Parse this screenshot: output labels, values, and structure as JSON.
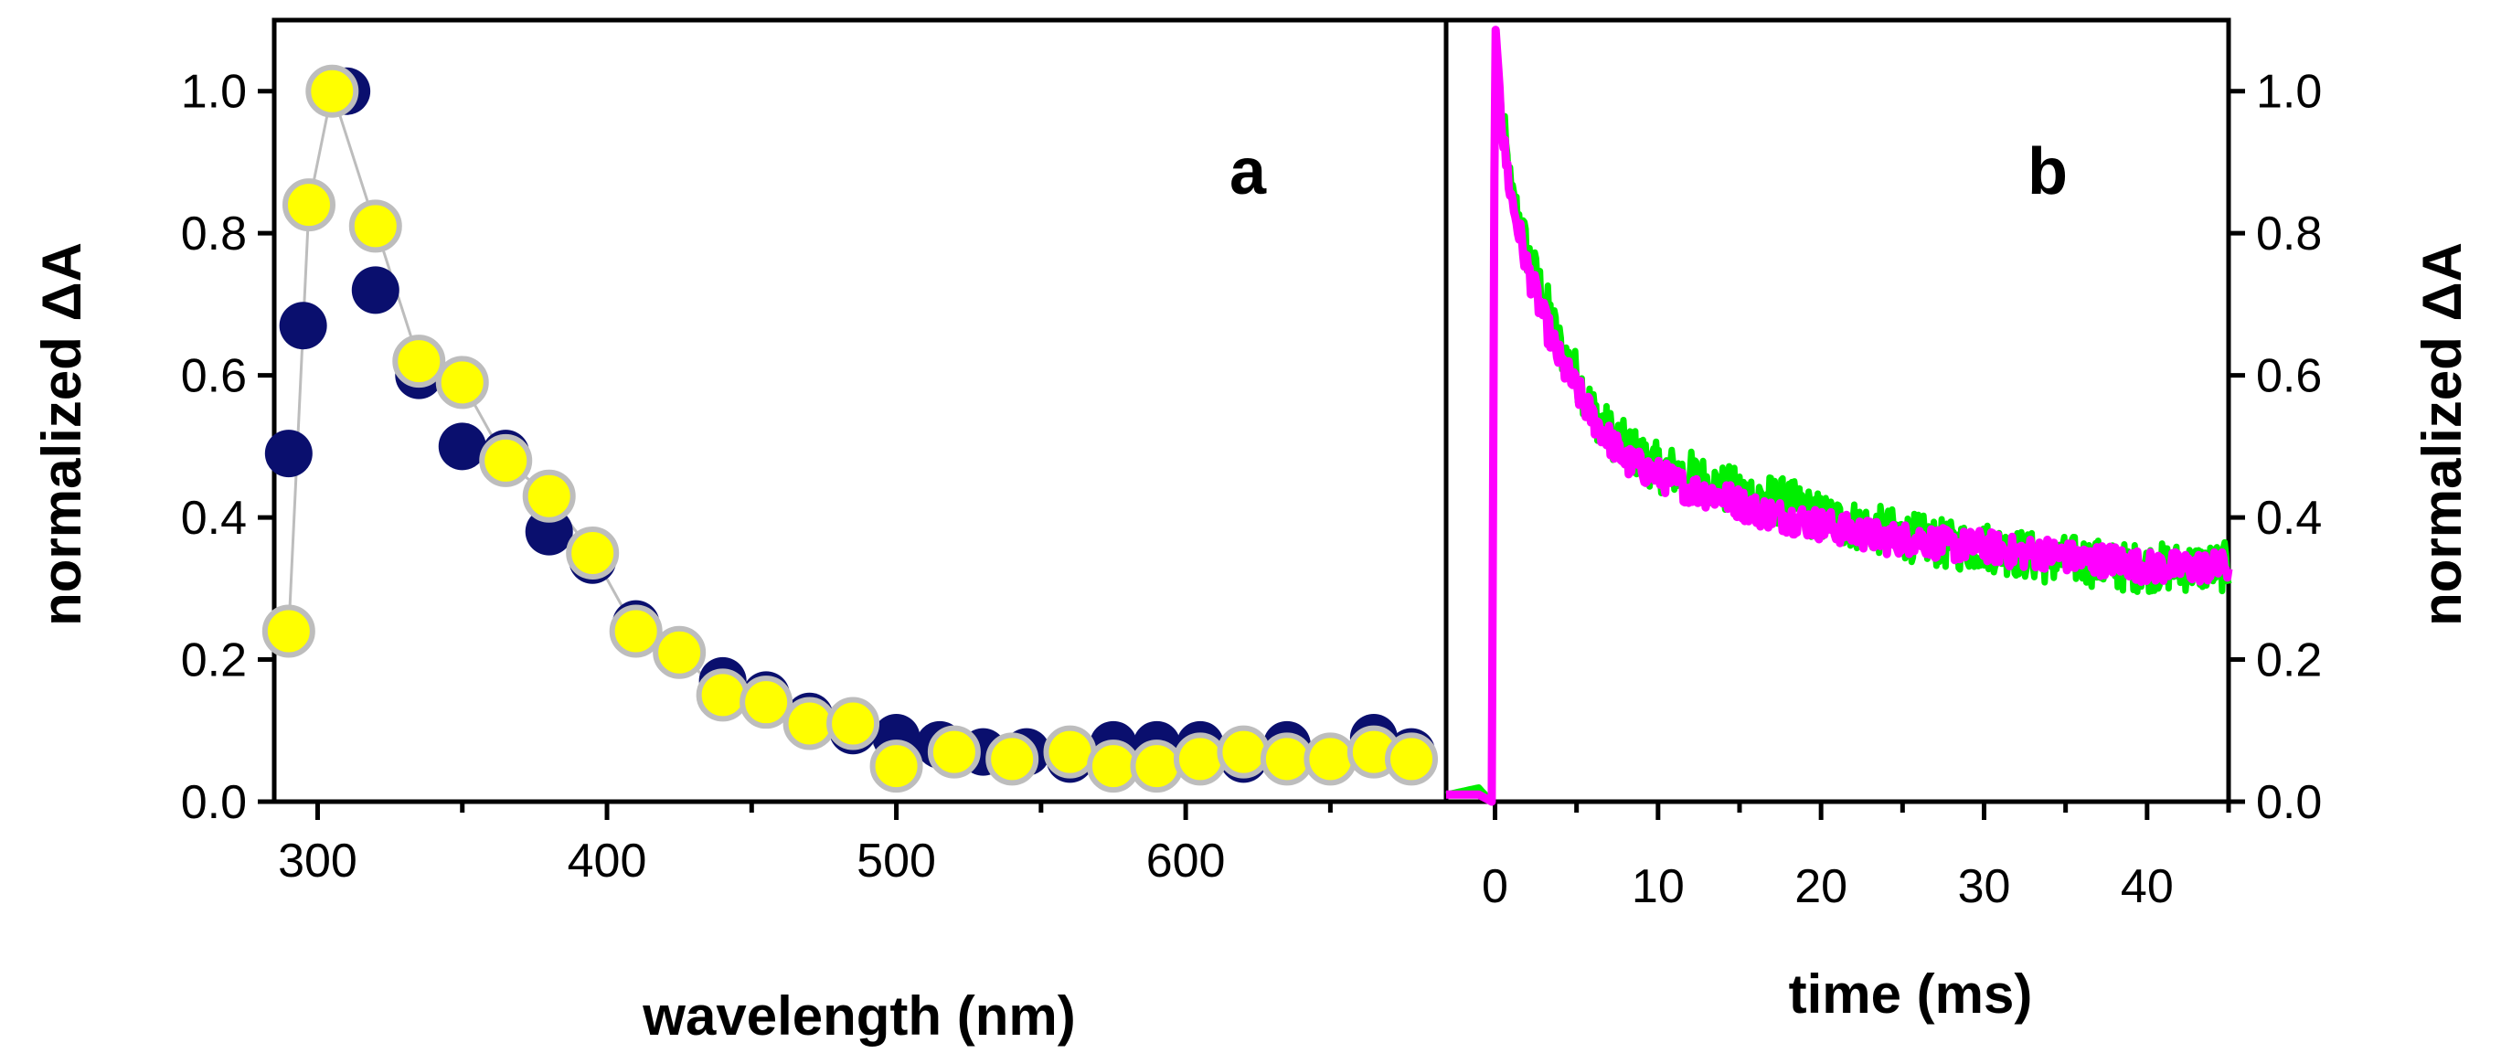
{
  "chart_data": [
    {
      "panel": "a",
      "type": "scatter",
      "xlabel": "wavelength (nm)",
      "ylabel": "normalized ΔA",
      "xlim": [
        285,
        690
      ],
      "ylim": [
        0,
        1.1
      ],
      "xticks": [
        300,
        400,
        500,
        600
      ],
      "yticks": [
        0.0,
        0.2,
        0.4,
        0.6,
        0.8,
        1.0
      ],
      "ytick_labels": [
        "0.0",
        "0.2",
        "0.4",
        "0.6",
        "0.8",
        "1.0"
      ],
      "grid": false,
      "series": [
        {
          "color": "#0a0f6e",
          "points": [
            [
              290,
              0.49
            ],
            [
              295,
              0.67
            ],
            [
              305,
              1.0
            ],
            [
              310,
              1.0
            ],
            [
              320,
              0.72
            ],
            [
              335,
              0.6
            ],
            [
              350,
              0.5
            ],
            [
              365,
              0.49
            ],
            [
              380,
              0.38
            ],
            [
              395,
              0.34
            ],
            [
              410,
              0.25
            ],
            [
              425,
              0.21
            ],
            [
              440,
              0.17
            ],
            [
              455,
              0.15
            ],
            [
              470,
              0.12
            ],
            [
              485,
              0.1
            ],
            [
              500,
              0.09
            ],
            [
              515,
              0.08
            ],
            [
              530,
              0.07
            ],
            [
              545,
              0.07
            ],
            [
              560,
              0.06
            ],
            [
              575,
              0.08
            ],
            [
              590,
              0.08
            ],
            [
              605,
              0.08
            ],
            [
              620,
              0.06
            ],
            [
              635,
              0.08
            ],
            [
              650,
              0.06
            ],
            [
              665,
              0.09
            ],
            [
              678,
              0.07
            ]
          ]
        },
        {
          "color": "#ffff00",
          "edge_color": "#bdbdbd",
          "connected": true,
          "points": [
            [
              290,
              0.24
            ],
            [
              297,
              0.84
            ],
            [
              305,
              1.0
            ],
            [
              320,
              0.81
            ],
            [
              335,
              0.62
            ],
            [
              350,
              0.59
            ],
            [
              365,
              0.48
            ],
            [
              380,
              0.43
            ],
            [
              395,
              0.35
            ],
            [
              410,
              0.24
            ],
            [
              425,
              0.21
            ],
            [
              440,
              0.15
            ],
            [
              455,
              0.14
            ],
            [
              470,
              0.11
            ],
            [
              485,
              0.11
            ],
            [
              500,
              0.05
            ],
            [
              520,
              0.07
            ],
            [
              540,
              0.06
            ],
            [
              560,
              0.07
            ],
            [
              575,
              0.05
            ],
            [
              590,
              0.05
            ],
            [
              605,
              0.06
            ],
            [
              620,
              0.07
            ],
            [
              635,
              0.06
            ],
            [
              650,
              0.06
            ],
            [
              665,
              0.07
            ],
            [
              678,
              0.06
            ]
          ]
        }
      ]
    },
    {
      "panel": "b",
      "type": "line",
      "xlabel": "time (ms)",
      "ylabel": "normalized ΔA",
      "xlim": [
        -3,
        45
      ],
      "ylim": [
        0,
        1.1
      ],
      "xticks": [
        0,
        10,
        20,
        30,
        40
      ],
      "yticks": [
        0.0,
        0.2,
        0.4,
        0.6,
        0.8,
        1.0
      ],
      "ytick_labels": [
        "0.0",
        "0.2",
        "0.4",
        "0.6",
        "0.8",
        "1.0"
      ],
      "grid": false,
      "series": [
        {
          "color": "#00ee00",
          "points": [
            [
              -3,
              0.01
            ],
            [
              -1,
              0.02
            ],
            [
              -0.2,
              0.0
            ],
            [
              0,
              1.05
            ],
            [
              0.5,
              0.95
            ],
            [
              1,
              0.85
            ],
            [
              1.5,
              0.82
            ],
            [
              2,
              0.77
            ],
            [
              3,
              0.71
            ],
            [
              4,
              0.64
            ],
            [
              5,
              0.6
            ],
            [
              6,
              0.55
            ],
            [
              7,
              0.52
            ],
            [
              8,
              0.5
            ],
            [
              10,
              0.47
            ],
            [
              12,
              0.46
            ],
            [
              14,
              0.44
            ],
            [
              16,
              0.43
            ],
            [
              18,
              0.42
            ],
            [
              20,
              0.4
            ],
            [
              22,
              0.39
            ],
            [
              24,
              0.38
            ],
            [
              26,
              0.37
            ],
            [
              28,
              0.36
            ],
            [
              30,
              0.36
            ],
            [
              32,
              0.35
            ],
            [
              34,
              0.34
            ],
            [
              36,
              0.34
            ],
            [
              38,
              0.33
            ],
            [
              40,
              0.33
            ],
            [
              42,
              0.33
            ],
            [
              45,
              0.33
            ]
          ]
        },
        {
          "color": "#ff00ff",
          "points": [
            [
              -3,
              0.01
            ],
            [
              -1,
              0.01
            ],
            [
              -0.2,
              0.0
            ],
            [
              0,
              1.1
            ],
            [
              0.5,
              0.93
            ],
            [
              1,
              0.85
            ],
            [
              1.5,
              0.8
            ],
            [
              2,
              0.75
            ],
            [
              3,
              0.68
            ],
            [
              4,
              0.62
            ],
            [
              5,
              0.58
            ],
            [
              6,
              0.54
            ],
            [
              7,
              0.51
            ],
            [
              8,
              0.48
            ],
            [
              10,
              0.46
            ],
            [
              12,
              0.44
            ],
            [
              14,
              0.43
            ],
            [
              16,
              0.41
            ],
            [
              18,
              0.4
            ],
            [
              20,
              0.39
            ],
            [
              22,
              0.38
            ],
            [
              24,
              0.37
            ],
            [
              26,
              0.37
            ],
            [
              28,
              0.36
            ],
            [
              30,
              0.36
            ],
            [
              32,
              0.35
            ],
            [
              34,
              0.35
            ],
            [
              36,
              0.34
            ],
            [
              38,
              0.34
            ],
            [
              40,
              0.33
            ],
            [
              42,
              0.33
            ],
            [
              45,
              0.33
            ]
          ]
        }
      ]
    }
  ]
}
